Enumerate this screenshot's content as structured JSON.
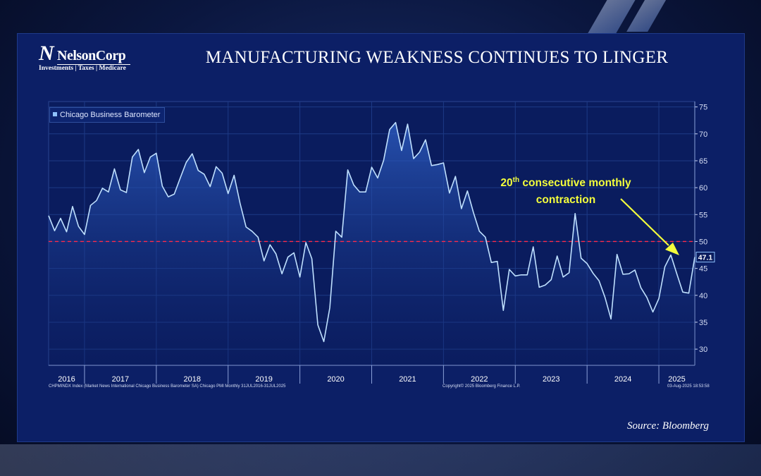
{
  "brand": {
    "logo_mark": "N",
    "name": "NelsonCorp",
    "tagline": "Investments | Taxes | Medicare"
  },
  "slide": {
    "title": "MANUFACTURING WEAKNESS CONTINUES TO LINGER",
    "source": "Source: Bloomberg",
    "annotation_sup": "th",
    "annotation_line1_num": "20",
    "annotation_line1_rest": " consecutive monthly",
    "annotation_line2": "contraction",
    "footer_left": "CHPMINDX Index (Market News International Chicago Business Barometer SA) Chicago PMI  Monthly 31JUL2016-31JUL2025",
    "footer_center": "Copyright© 2025 Bloomberg Finance L.P.",
    "footer_right": "03-Aug-2025 18:53:58"
  },
  "colors": {
    "series": "#bfe0ff",
    "threshold": "#ff2a4a",
    "annotation": "#f4ff3c",
    "panel": "#0c1f66"
  },
  "chart_data": {
    "type": "line",
    "title": "",
    "legend": "top-left",
    "grid": true,
    "ylim": [
      27,
      76
    ],
    "yticks": [
      30,
      35,
      40,
      45,
      50,
      55,
      60,
      65,
      70,
      75
    ],
    "xlabels": [
      "2016",
      "2017",
      "2018",
      "2019",
      "2020",
      "2021",
      "2022",
      "2023",
      "2024",
      "2025"
    ],
    "reference_line": 50,
    "last_value_label": "47.1",
    "x_start": "2016-07",
    "x_end": "2025-07",
    "series": [
      {
        "name": "Chicago Business Barometer",
        "values": [
          54.8,
          52.0,
          54.3,
          51.8,
          56.5,
          52.8,
          51.3,
          56.7,
          57.6,
          59.9,
          59.2,
          63.5,
          59.6,
          59.1,
          65.7,
          67.1,
          62.8,
          65.7,
          66.4,
          60.3,
          58.3,
          58.8,
          61.8,
          64.7,
          66.3,
          63.2,
          62.5,
          60.2,
          63.9,
          62.7,
          58.9,
          62.3,
          57.1,
          52.7,
          51.9,
          50.8,
          46.4,
          49.4,
          47.7,
          44.0,
          47.1,
          47.9,
          43.4,
          49.8,
          46.8,
          34.5,
          31.4,
          37.7,
          51.9,
          50.8,
          63.3,
          60.5,
          59.2,
          59.2,
          63.8,
          61.8,
          65.1,
          70.8,
          72.1,
          66.9,
          71.8,
          65.4,
          66.6,
          68.9,
          64.1,
          64.3,
          64.6,
          59.0,
          62.1,
          56.1,
          59.4,
          55.4,
          51.9,
          50.8,
          46.1,
          46.3,
          37.2,
          44.8,
          43.6,
          43.8,
          43.8,
          49.0,
          41.5,
          41.9,
          42.9,
          47.3,
          43.4,
          44.2,
          55.2,
          46.9,
          45.9,
          44.1,
          42.7,
          39.6,
          35.6,
          47.6,
          43.9,
          44.0,
          44.7,
          41.4,
          39.6,
          36.9,
          39.4,
          45.3,
          47.5,
          44.0,
          40.6,
          40.4,
          47.1
        ]
      }
    ]
  }
}
